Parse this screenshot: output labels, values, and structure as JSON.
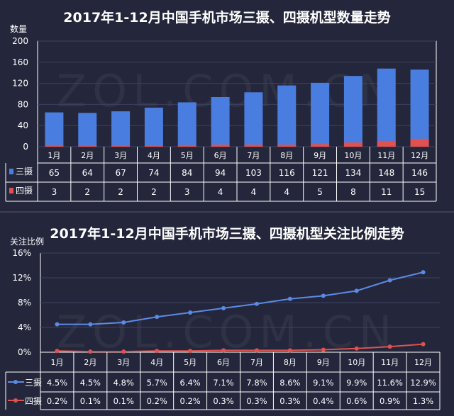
{
  "chart_data": [
    {
      "type": "bar",
      "title": "2017年1-12月中国手机市场三摄、四摄机型数量走势",
      "ylabel": "数量",
      "ylim": [
        0,
        200
      ],
      "yticks": [
        0,
        40,
        80,
        120,
        160,
        200
      ],
      "categories": [
        "1月",
        "2月",
        "3月",
        "4月",
        "5月",
        "6月",
        "7月",
        "8月",
        "9月",
        "10月",
        "11月",
        "12月"
      ],
      "series": [
        {
          "name": "三摄",
          "color": "#4a7de0",
          "values": [
            65,
            64,
            67,
            74,
            84,
            94,
            103,
            116,
            121,
            134,
            148,
            146
          ]
        },
        {
          "name": "四摄",
          "color": "#e0514f",
          "values": [
            3,
            2,
            2,
            2,
            3,
            4,
            4,
            4,
            5,
            8,
            11,
            15
          ]
        }
      ],
      "watermark": "ZOL.COM.CN"
    },
    {
      "type": "line",
      "title": "2017年1-12月中国手机市场三摄、四摄机型关注比例走势",
      "ylabel": "关注比例",
      "ylim": [
        0,
        16
      ],
      "yticks": [
        "0%",
        "4%",
        "8%",
        "12%",
        "16%"
      ],
      "categories": [
        "1月",
        "2月",
        "3月",
        "4月",
        "5月",
        "6月",
        "7月",
        "8月",
        "9月",
        "10月",
        "11月",
        "12月"
      ],
      "series": [
        {
          "name": "三摄",
          "color": "#5b8ae6",
          "values": [
            4.5,
            4.5,
            4.8,
            5.7,
            6.4,
            7.1,
            7.8,
            8.6,
            9.1,
            9.9,
            11.6,
            12.9
          ],
          "labels": [
            "4.5%",
            "4.5%",
            "4.8%",
            "5.7%",
            "6.4%",
            "7.1%",
            "7.8%",
            "8.6%",
            "9.1%",
            "9.9%",
            "11.6%",
            "12.9%"
          ]
        },
        {
          "name": "四摄",
          "color": "#e0514f",
          "values": [
            0.2,
            0.1,
            0.1,
            0.2,
            0.2,
            0.3,
            0.3,
            0.3,
            0.4,
            0.6,
            0.9,
            1.3
          ],
          "labels": [
            "0.2%",
            "0.1%",
            "0.1%",
            "0.2%",
            "0.2%",
            "0.3%",
            "0.3%",
            "0.3%",
            "0.4%",
            "0.6%",
            "0.9%",
            "1.3%"
          ]
        }
      ],
      "watermark": "ZOL.COM.CN"
    }
  ]
}
